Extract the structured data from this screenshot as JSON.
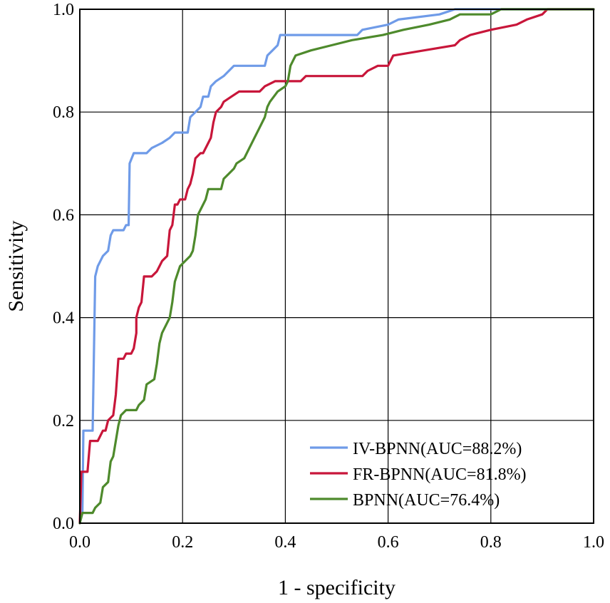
{
  "chart_data": {
    "type": "line",
    "title": "",
    "xlabel": "1 - specificity",
    "ylabel": "Sensitivity",
    "xlim": [
      0,
      1
    ],
    "ylim": [
      0,
      1
    ],
    "grid": true,
    "legend_position": "bottom-right",
    "x_ticks": [
      "0.0",
      "0.2",
      "0.4",
      "0.6",
      "0.8",
      "1.0"
    ],
    "y_ticks": [
      "0.0",
      "0.2",
      "0.4",
      "0.6",
      "0.8",
      "1.0"
    ],
    "series": [
      {
        "name": "IV-BPNN(AUC=88.2%)",
        "color": "#6f9be8",
        "points": [
          [
            0,
            0
          ],
          [
            0.005,
            0.02
          ],
          [
            0.007,
            0.18
          ],
          [
            0.025,
            0.18
          ],
          [
            0.03,
            0.48
          ],
          [
            0.035,
            0.5
          ],
          [
            0.04,
            0.51
          ],
          [
            0.045,
            0.52
          ],
          [
            0.055,
            0.53
          ],
          [
            0.06,
            0.56
          ],
          [
            0.065,
            0.57
          ],
          [
            0.085,
            0.57
          ],
          [
            0.09,
            0.58
          ],
          [
            0.095,
            0.58
          ],
          [
            0.097,
            0.7
          ],
          [
            0.105,
            0.72
          ],
          [
            0.13,
            0.72
          ],
          [
            0.14,
            0.73
          ],
          [
            0.16,
            0.74
          ],
          [
            0.175,
            0.75
          ],
          [
            0.185,
            0.76
          ],
          [
            0.21,
            0.76
          ],
          [
            0.215,
            0.79
          ],
          [
            0.225,
            0.8
          ],
          [
            0.235,
            0.81
          ],
          [
            0.24,
            0.83
          ],
          [
            0.25,
            0.83
          ],
          [
            0.255,
            0.85
          ],
          [
            0.265,
            0.86
          ],
          [
            0.28,
            0.87
          ],
          [
            0.29,
            0.88
          ],
          [
            0.3,
            0.89
          ],
          [
            0.36,
            0.89
          ],
          [
            0.365,
            0.91
          ],
          [
            0.375,
            0.92
          ],
          [
            0.385,
            0.93
          ],
          [
            0.39,
            0.95
          ],
          [
            0.54,
            0.95
          ],
          [
            0.55,
            0.96
          ],
          [
            0.6,
            0.97
          ],
          [
            0.62,
            0.98
          ],
          [
            0.7,
            0.99
          ],
          [
            0.73,
            1.0
          ],
          [
            1.0,
            1.0
          ]
        ]
      },
      {
        "name": "FR-BPNN(AUC=81.8%)",
        "color": "#c8163a",
        "points": [
          [
            0,
            0
          ],
          [
            0.003,
            0.1
          ],
          [
            0.015,
            0.1
          ],
          [
            0.02,
            0.16
          ],
          [
            0.035,
            0.16
          ],
          [
            0.045,
            0.18
          ],
          [
            0.05,
            0.18
          ],
          [
            0.055,
            0.2
          ],
          [
            0.065,
            0.21
          ],
          [
            0.07,
            0.25
          ],
          [
            0.075,
            0.32
          ],
          [
            0.085,
            0.32
          ],
          [
            0.09,
            0.33
          ],
          [
            0.1,
            0.33
          ],
          [
            0.105,
            0.34
          ],
          [
            0.11,
            0.37
          ],
          [
            0.11,
            0.4
          ],
          [
            0.115,
            0.42
          ],
          [
            0.12,
            0.43
          ],
          [
            0.125,
            0.48
          ],
          [
            0.14,
            0.48
          ],
          [
            0.15,
            0.49
          ],
          [
            0.155,
            0.5
          ],
          [
            0.16,
            0.51
          ],
          [
            0.17,
            0.52
          ],
          [
            0.175,
            0.57
          ],
          [
            0.18,
            0.58
          ],
          [
            0.185,
            0.62
          ],
          [
            0.19,
            0.62
          ],
          [
            0.195,
            0.63
          ],
          [
            0.205,
            0.63
          ],
          [
            0.21,
            0.65
          ],
          [
            0.215,
            0.66
          ],
          [
            0.22,
            0.68
          ],
          [
            0.225,
            0.71
          ],
          [
            0.235,
            0.72
          ],
          [
            0.24,
            0.72
          ],
          [
            0.25,
            0.74
          ],
          [
            0.255,
            0.75
          ],
          [
            0.26,
            0.78
          ],
          [
            0.265,
            0.8
          ],
          [
            0.275,
            0.81
          ],
          [
            0.28,
            0.82
          ],
          [
            0.295,
            0.83
          ],
          [
            0.31,
            0.84
          ],
          [
            0.35,
            0.84
          ],
          [
            0.36,
            0.85
          ],
          [
            0.38,
            0.86
          ],
          [
            0.43,
            0.86
          ],
          [
            0.44,
            0.87
          ],
          [
            0.55,
            0.87
          ],
          [
            0.56,
            0.88
          ],
          [
            0.58,
            0.89
          ],
          [
            0.6,
            0.89
          ],
          [
            0.61,
            0.91
          ],
          [
            0.67,
            0.92
          ],
          [
            0.73,
            0.93
          ],
          [
            0.74,
            0.94
          ],
          [
            0.76,
            0.95
          ],
          [
            0.8,
            0.96
          ],
          [
            0.85,
            0.97
          ],
          [
            0.87,
            0.98
          ],
          [
            0.9,
            0.99
          ],
          [
            0.91,
            1.0
          ],
          [
            1.0,
            1.0
          ]
        ]
      },
      {
        "name": "BPNN(AUC=76.4%)",
        "color": "#4e8a2c",
        "points": [
          [
            0,
            0
          ],
          [
            0.005,
            0.02
          ],
          [
            0.025,
            0.02
          ],
          [
            0.03,
            0.03
          ],
          [
            0.04,
            0.04
          ],
          [
            0.045,
            0.07
          ],
          [
            0.055,
            0.08
          ],
          [
            0.06,
            0.12
          ],
          [
            0.065,
            0.13
          ],
          [
            0.07,
            0.16
          ],
          [
            0.075,
            0.19
          ],
          [
            0.08,
            0.21
          ],
          [
            0.09,
            0.22
          ],
          [
            0.11,
            0.22
          ],
          [
            0.115,
            0.23
          ],
          [
            0.125,
            0.24
          ],
          [
            0.13,
            0.27
          ],
          [
            0.145,
            0.28
          ],
          [
            0.15,
            0.31
          ],
          [
            0.155,
            0.35
          ],
          [
            0.16,
            0.37
          ],
          [
            0.17,
            0.39
          ],
          [
            0.175,
            0.4
          ],
          [
            0.18,
            0.43
          ],
          [
            0.185,
            0.47
          ],
          [
            0.195,
            0.5
          ],
          [
            0.205,
            0.51
          ],
          [
            0.215,
            0.52
          ],
          [
            0.22,
            0.53
          ],
          [
            0.225,
            0.56
          ],
          [
            0.23,
            0.6
          ],
          [
            0.24,
            0.62
          ],
          [
            0.245,
            0.63
          ],
          [
            0.25,
            0.65
          ],
          [
            0.275,
            0.65
          ],
          [
            0.28,
            0.67
          ],
          [
            0.29,
            0.68
          ],
          [
            0.3,
            0.69
          ],
          [
            0.305,
            0.7
          ],
          [
            0.32,
            0.71
          ],
          [
            0.33,
            0.73
          ],
          [
            0.34,
            0.75
          ],
          [
            0.35,
            0.77
          ],
          [
            0.36,
            0.79
          ],
          [
            0.365,
            0.81
          ],
          [
            0.37,
            0.82
          ],
          [
            0.385,
            0.84
          ],
          [
            0.4,
            0.85
          ],
          [
            0.405,
            0.86
          ],
          [
            0.41,
            0.89
          ],
          [
            0.42,
            0.91
          ],
          [
            0.45,
            0.92
          ],
          [
            0.49,
            0.93
          ],
          [
            0.53,
            0.94
          ],
          [
            0.59,
            0.95
          ],
          [
            0.63,
            0.96
          ],
          [
            0.68,
            0.97
          ],
          [
            0.72,
            0.98
          ],
          [
            0.74,
            0.99
          ],
          [
            0.8,
            0.99
          ],
          [
            0.82,
            1.0
          ],
          [
            1.0,
            1.0
          ]
        ]
      }
    ]
  }
}
